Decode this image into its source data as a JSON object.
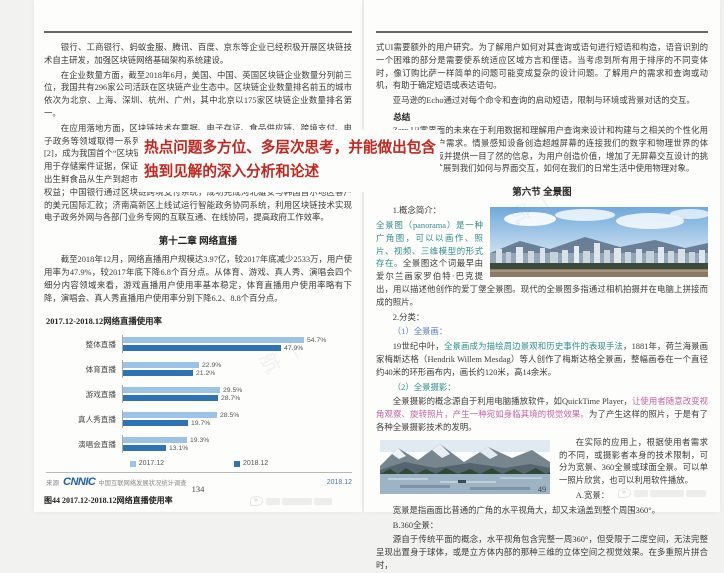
{
  "page_left": {
    "paragraphs": [
      "银行、工商银行、蚂蚁金服、腾讯、百度、京东等企业已经积极开展区块链技术自主研发，加强区块链网络基础架构系统建设。",
      "在企业数量方面，截至2018年6月，美国、中国、英国区块链企业数量分列前三位，我国共有296家公司活跃在区块链产业生态中。区块链企业数量排名前五的城市依次为北京、上海、深圳、杭州、广州，其中北京以175家区块链企业数量排名第一。",
      "在应用落地方面，区块链技术在票据、电子存证、食品供应链、跨境支付、电子政务等领域取得一系列成果。2018年下半年，首张区块链电子发票在深圳开出[2]，成为我国首个“区块链+发票”的落地应用。北京互联网法院推出“天平链”平台，用于存储案件证据，保证数据真实性和隐私性；蚂蚁金服、京东物流使用区块链推出生鲜食品从生产到超市的溯源服务平台，以提升食品供应链透明度、保护消费者权益；中国银行通过区块链跨境支付系统，成功完成河北雄安与韩国首尔地区客户的美元国际汇款；济南高新区上线试运行智能政务协同系统，利用区块链技术实现电子政务外网与各部门业务专网的互联互通、在线协同，提高政府工作效率。"
    ],
    "annotation_text": "热点问题多方位、多层次思考，并能做出包含独到见解的深入分析和论述",
    "chapter_heading": "第十二章  网络直播",
    "stats_paragraph": "截至2018年12月，网络直播用户规模达3.97亿，较2017年底减少2533万，用户使用率为47.9%，较2017年底下降6.8个百分点。从体育、游戏、真人秀、演唱会四个细分内容领域来看，游戏直播用户使用率基本稳定，体育直播用户使用率略有下降，演唱会、真人秀直播用户使用率分别下降6.2、8.8个百分点。",
    "source_prefix": "来源",
    "source_logo": "CNNIC",
    "source_text": "中国互联网络发展状况统计调查",
    "source_date": "2018.12",
    "figure_caption": "图44  2017.12-2018.12网络直播使用率",
    "page_number": "134"
  },
  "chart_data": {
    "type": "bar",
    "orientation": "horizontal",
    "title": "2017.12-2018.12网络直播使用率",
    "categories": [
      "整体直播",
      "体育直播",
      "游戏直播",
      "真人秀直播",
      "演唱会直播"
    ],
    "series": [
      {
        "name": "2017.12",
        "color": "#9cc2e5",
        "values": [
          54.7,
          22.9,
          29.5,
          28.5,
          19.3
        ]
      },
      {
        "name": "2018.12",
        "color": "#2e74b5",
        "values": [
          47.9,
          21.2,
          28.7,
          19.7,
          13.1
        ]
      }
    ],
    "value_suffix": "%",
    "xlim": [
      0,
      60
    ],
    "grid": false,
    "legend_position": "bottom",
    "source": "来源 CNNIC 中国互联网络发展状况统计调查 2018.12"
  },
  "page_right": {
    "para_top": "式UI需要额外的用户研究。为了解用户如何对其查询或语句进行短语和构造，语音识别的一个困难的部分是需要使系统适应区域方言和俚语。当考虑到所有用于排序的不同变体时，像订购比萨一样简单的问题可能变成复杂的设计问题。了解用户的需求和查询或动机，有助于确定短语或表达语句。",
    "para_echo": "亚马逊的Echo通过对每个命令和查询的启动短语，限制与环境或背景对话的交互。",
    "summary_label": "总结",
    "para_summary": "Zero UI零界面的未来在于利用数据和理解用户查询来设计和构建与之相关的个性化用户体验并预测用户需求。情景感知设备创造超越屏幕的连接我们的数字和物理世界的体验。最小化仪表板并提供一目了然的信息，为用户创造价值，增加了无屏幕交互设计的挑战。用户研究将扩展到我们如何与界面交互，如何在我们的日常生活中使用物理对象。",
    "section_heading": "第六节  全景图",
    "intro_label": "1.概念简介：",
    "intro_runs": [
      {
        "t": "全景图（panorama）是一种广角图，可以以画作、照片、视频、三维模型的形式存在。",
        "c": "teal"
      },
      {
        "t": "全景图这个词最早由爱尔兰画家罗伯特·巴克提出，用以描述他创作的爱丁堡全景图。",
        "c": "k"
      },
      {
        "t": "现代的全景图多指通过相机拍摄并在电脑上拼接而成的照片。",
        "c": "k"
      }
    ],
    "class_label": "2.分类：",
    "c1_label": "（1）全景画：",
    "c1_runs": [
      {
        "t": "19世纪中叶，",
        "c": "k"
      },
      {
        "t": "全景画成为描绘周边景观和历史事件的表现手法",
        "c": "teal"
      },
      {
        "t": "，1881年，荷兰海景画家梅斯达格（Hendrik Willem Mesdag）等人创作了梅斯达格全景画，整幅画卷在一个直径约40米的环形画布内，画长约120米，高14余米。",
        "c": "k"
      }
    ],
    "c2_label": "（2）全景摄影：",
    "c2_runs": [
      {
        "t": "全景摄影的概念源自于利用电脑播放软件，如QuickTime Player，",
        "c": "k"
      },
      {
        "t": "让使用者随意改变视角观察、旋转照片，产生一种宛如身临其境的视觉效果。",
        "c": "pink"
      },
      {
        "t": "为了产生这样的照片，于是有了各种全景摄影技术的发明。",
        "c": "k"
      }
    ],
    "para_practice": "在实际的应用上，根据使用者需求的不同，或摄影者本身的技术限制，可分为宽景、360全景或球面全景。可以单一照片欣赏，也可以利用软件播放。",
    "a_label": "A.宽景：",
    "para_a": "宽景是指画面比普通的广角的水平视角大，却又未涵盖到整个周围360°。",
    "b_label": "B.360全景：",
    "para_b": "源自于传统平面的概念，水平视角包含完整一周360°，但受限于二度空间，无法完整呈现出置身于球体，或是立方体内部的那种三维的立体空间之视觉效果。在多重照片拼合时，",
    "page_number": "49"
  },
  "watermark_text": "一航",
  "colors": {
    "annotation_red": "#c3261e",
    "bar_2017": "#9cc2e5",
    "bar_2018": "#2e74b5",
    "teal_text": "#2f8e8a",
    "pink_text": "#c75fa1",
    "cnnic_blue": "#1d5fae"
  }
}
